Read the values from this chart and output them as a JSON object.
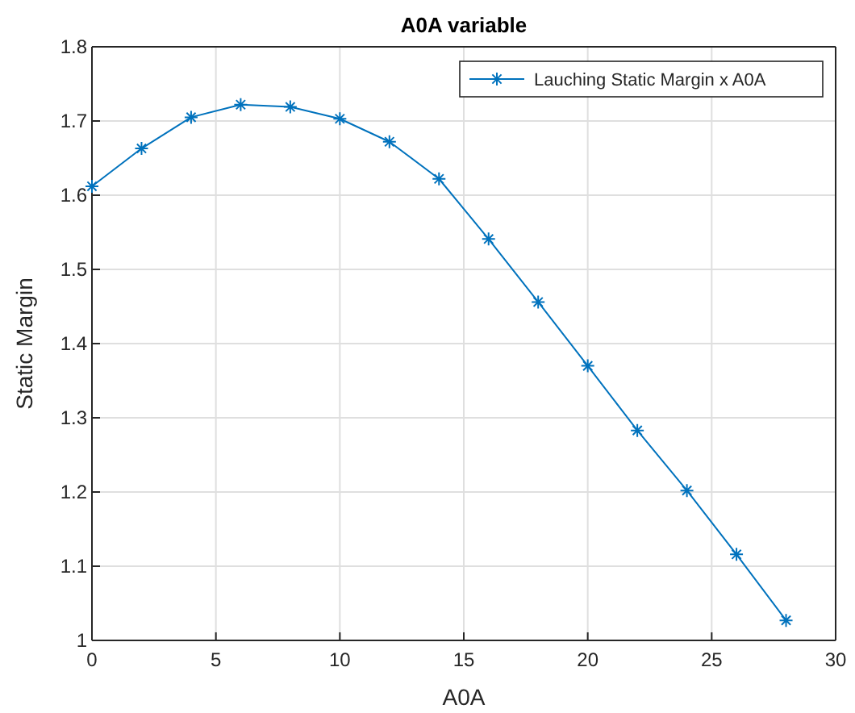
{
  "chart_data": {
    "type": "line",
    "title": "A0A variable",
    "xlabel": "A0A",
    "ylabel": "Static Margin",
    "x": [
      0,
      2,
      4,
      6,
      8,
      10,
      12,
      14,
      16,
      18,
      20,
      22,
      24,
      26,
      28
    ],
    "series": [
      {
        "name": "Lauching Static Margin x A0A",
        "color": "#0072bd",
        "values": [
          1.612,
          1.663,
          1.705,
          1.722,
          1.719,
          1.703,
          1.672,
          1.622,
          1.541,
          1.456,
          1.37,
          1.283,
          1.202,
          1.116,
          1.027
        ]
      }
    ],
    "xlim": [
      0,
      30
    ],
    "xticks": [
      0,
      5,
      10,
      15,
      20,
      25,
      30
    ],
    "ylim": [
      1,
      1.8
    ],
    "yticks": [
      1,
      1.1,
      1.2,
      1.3,
      1.4,
      1.5,
      1.6,
      1.7,
      1.8
    ],
    "grid": true,
    "legend": "top right",
    "marker": "cross",
    "line_style": "solid"
  }
}
